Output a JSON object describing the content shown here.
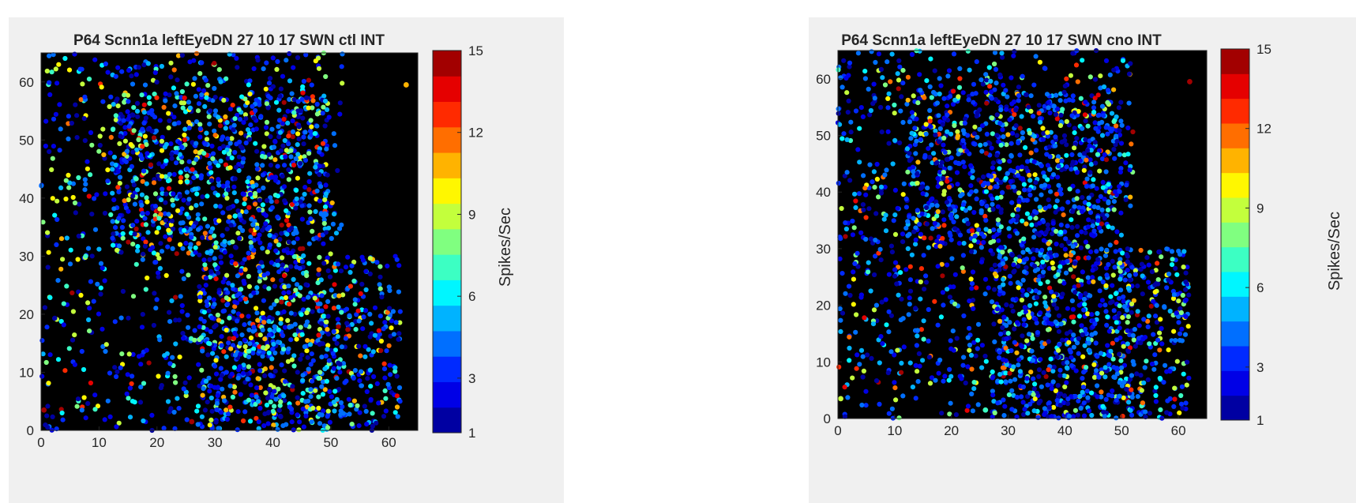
{
  "chart_data": [
    {
      "type": "scatter",
      "title": "P64 Scnn1a leftEyeDN 27 10 17 SWN ctl INT",
      "xlim": [
        0,
        65
      ],
      "ylim": [
        0,
        65
      ],
      "xticks": [
        "0",
        "10",
        "20",
        "30",
        "40",
        "50",
        "60"
      ],
      "yticks": [
        "0",
        "10",
        "20",
        "30",
        "40",
        "50",
        "60"
      ],
      "background": "#000000",
      "grid": false,
      "colorbar": {
        "label": "Spikes/Sec",
        "range": [
          1,
          15
        ],
        "ticks": [
          "1",
          "3",
          "6",
          "9",
          "12",
          "15"
        ],
        "levels": 15,
        "colormap": "jet"
      },
      "point_cloud": {
        "approx_points": 2400,
        "seed": 7,
        "regions": [
          {
            "x_range": [
              0,
              52
            ],
            "y_range": [
              0,
              65
            ],
            "weight": 0.4
          },
          {
            "x_range": [
              27,
              62
            ],
            "y_range": [
              0,
              30
            ],
            "weight": 0.3
          },
          {
            "x_range": [
              12,
              50
            ],
            "y_range": [
              30,
              58
            ],
            "weight": 0.3
          }
        ],
        "value_distribution": {
          "low_fraction": 0.65,
          "mid_fraction": 0.25,
          "high_fraction": 0.1
        }
      },
      "annotated_points": [
        {
          "x": 63,
          "y": 59.5,
          "value": 11
        },
        {
          "x": 0.5,
          "y": 3.5,
          "value": 15
        },
        {
          "x": 26,
          "y": 1.5,
          "value": 15
        }
      ]
    },
    {
      "type": "scatter",
      "title": "P64 Scnn1a leftEyeDN 27 10 17 SWN cno INT",
      "xlim": [
        0,
        65
      ],
      "ylim": [
        0,
        65
      ],
      "xticks": [
        "0",
        "10",
        "20",
        "30",
        "40",
        "50",
        "60"
      ],
      "yticks": [
        "0",
        "10",
        "20",
        "30",
        "40",
        "50",
        "60"
      ],
      "background": "#000000",
      "grid": false,
      "colorbar": {
        "label": "Spikes/Sec",
        "range": [
          1,
          15
        ],
        "ticks": [
          "1",
          "3",
          "6",
          "9",
          "12",
          "15"
        ],
        "levels": 15,
        "colormap": "jet"
      },
      "point_cloud": {
        "approx_points": 2400,
        "seed": 19,
        "regions": [
          {
            "x_range": [
              0,
              52
            ],
            "y_range": [
              0,
              65
            ],
            "weight": 0.4
          },
          {
            "x_range": [
              27,
              62
            ],
            "y_range": [
              0,
              30
            ],
            "weight": 0.3
          },
          {
            "x_range": [
              12,
              50
            ],
            "y_range": [
              30,
              58
            ],
            "weight": 0.3
          }
        ],
        "value_distribution": {
          "low_fraction": 0.72,
          "mid_fraction": 0.2,
          "high_fraction": 0.08
        }
      },
      "annotated_points": [
        {
          "x": 62,
          "y": 59.5,
          "value": 15
        },
        {
          "x": 0.5,
          "y": 3.5,
          "value": 9
        },
        {
          "x": 26,
          "y": 1.5,
          "value": 7
        }
      ]
    }
  ]
}
